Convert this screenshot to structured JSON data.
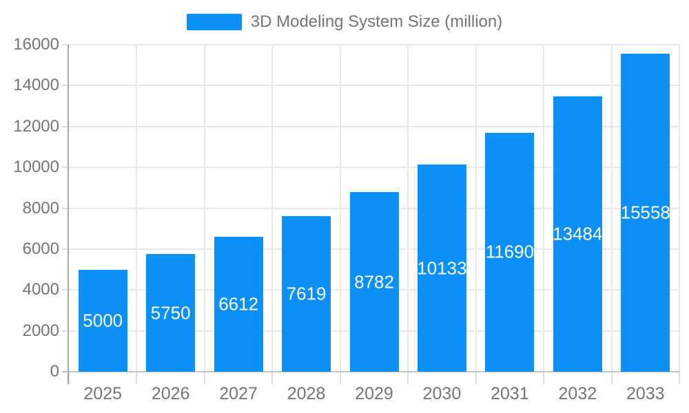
{
  "chart_data": {
    "type": "bar",
    "legend_label": "3D Modeling System Size (million)",
    "categories": [
      "2025",
      "2026",
      "2027",
      "2028",
      "2029",
      "2030",
      "2031",
      "2032",
      "2033"
    ],
    "series": [
      {
        "name": "3D Modeling System Size (million)",
        "values": [
          5000,
          5750,
          6612,
          7619,
          8782,
          10133,
          11690,
          13484,
          15558
        ]
      }
    ],
    "yticks": [
      0,
      2000,
      4000,
      6000,
      8000,
      10000,
      12000,
      14000,
      16000
    ],
    "ylim": [
      0,
      16000
    ],
    "xlabel": "",
    "ylabel": "",
    "grid": true,
    "legend_position": "top-center",
    "bar_value_labels_visible": true
  },
  "colors": {
    "bar": "#0b90f8",
    "bar_value_label": "#ffffff",
    "gridline": "#e7e7e7",
    "tick": "#dcdcdc",
    "y_axis_line": "#a8a8a8",
    "x_axis_line": "#c2c2c2",
    "axis_text": "#757575",
    "legend_text": "#757575",
    "background": "#ffffff"
  }
}
